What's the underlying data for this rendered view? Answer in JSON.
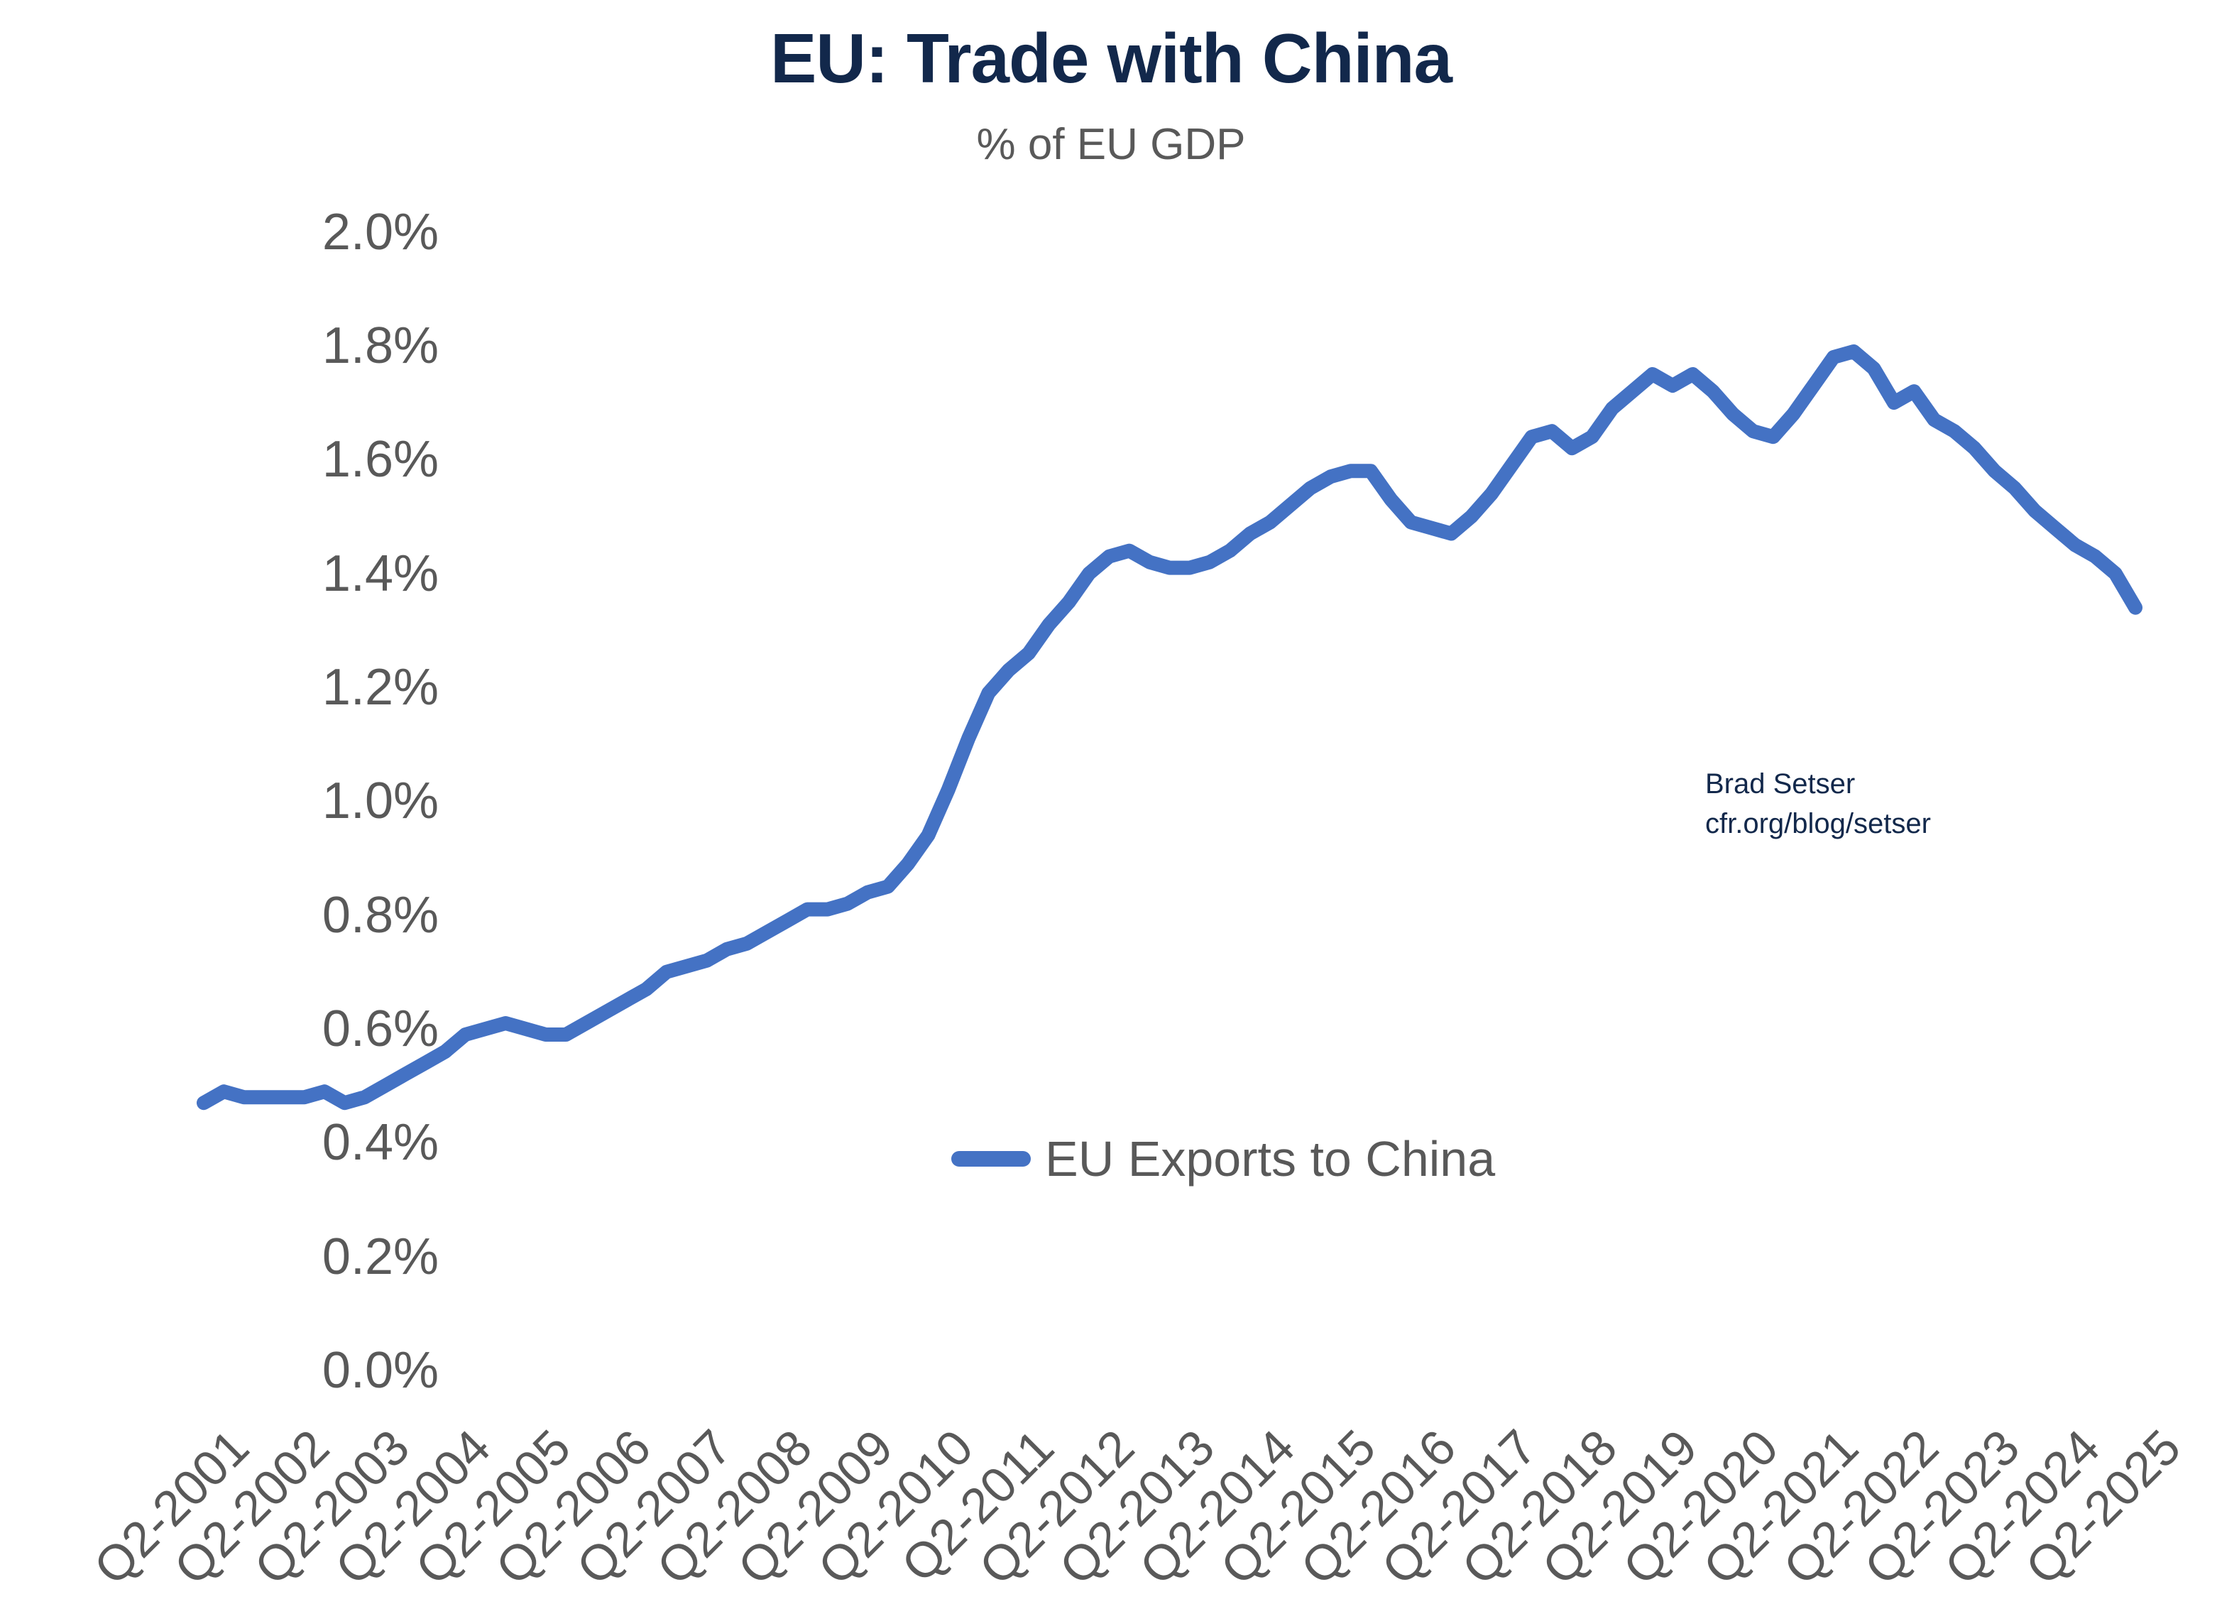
{
  "title": "EU: Trade with China",
  "subtitle": "% of EU GDP",
  "annotation": {
    "line1": "Brad Setser",
    "line2": "cfr.org/blog/setser"
  },
  "legend": {
    "label": "EU Exports to China"
  },
  "colors": {
    "line": "#4472C4",
    "title": "#12284B",
    "axis_text": "#595959",
    "background": "#ffffff"
  },
  "chart_data": {
    "type": "line",
    "title": "EU: Trade with China",
    "subtitle": "% of EU GDP",
    "series_name": "EU Exports to China",
    "frequency": "quarterly",
    "start_period": "Q2-2001",
    "end_period": "Q2-2025",
    "unit": "% of EU GDP",
    "ylim": [
      0.0,
      2.0
    ],
    "y_tick_step": 0.2,
    "grid": "off",
    "legend_position": "center-inside-bottom",
    "y_ticks": [
      {
        "value": 2.0,
        "label": "2.0%"
      },
      {
        "value": 1.8,
        "label": "1.8%"
      },
      {
        "value": 1.6,
        "label": "1.6%"
      },
      {
        "value": 1.4,
        "label": "1.4%"
      },
      {
        "value": 1.2,
        "label": "1.2%"
      },
      {
        "value": 1.0,
        "label": "1.0%"
      },
      {
        "value": 0.8,
        "label": "0.8%"
      },
      {
        "value": 0.6,
        "label": "0.6%"
      },
      {
        "value": 0.4,
        "label": "0.4%"
      },
      {
        "value": 0.2,
        "label": "0.2%"
      },
      {
        "value": 0.0,
        "label": "0.0%"
      }
    ],
    "x_tick_every": 4,
    "x_tick_labels": [
      "Q2-2001",
      "Q2-2002",
      "Q2-2003",
      "Q2-2004",
      "Q2-2005",
      "Q2-2006",
      "Q2-2007",
      "Q2-2008",
      "Q2-2009",
      "Q2-2010",
      "Q2-2011",
      "Q2-2012",
      "Q2-2013",
      "Q2-2014",
      "Q2-2015",
      "Q2-2016",
      "Q2-2017",
      "Q2-2018",
      "Q2-2019",
      "Q2-2020",
      "Q2-2021",
      "Q2-2022",
      "Q2-2023",
      "Q2-2024",
      "Q2-2025"
    ],
    "values": [
      0.47,
      0.49,
      0.48,
      0.48,
      0.48,
      0.48,
      0.49,
      0.47,
      0.48,
      0.5,
      0.52,
      0.54,
      0.56,
      0.59,
      0.6,
      0.61,
      0.6,
      0.59,
      0.59,
      0.61,
      0.63,
      0.65,
      0.67,
      0.7,
      0.71,
      0.72,
      0.74,
      0.75,
      0.77,
      0.79,
      0.81,
      0.81,
      0.82,
      0.84,
      0.85,
      0.89,
      0.94,
      1.02,
      1.11,
      1.19,
      1.23,
      1.26,
      1.31,
      1.35,
      1.4,
      1.43,
      1.44,
      1.42,
      1.41,
      1.41,
      1.42,
      1.44,
      1.47,
      1.49,
      1.52,
      1.55,
      1.57,
      1.58,
      1.58,
      1.53,
      1.49,
      1.48,
      1.47,
      1.5,
      1.54,
      1.59,
      1.64,
      1.65,
      1.62,
      1.64,
      1.69,
      1.72,
      1.75,
      1.73,
      1.75,
      1.72,
      1.68,
      1.65,
      1.64,
      1.68,
      1.73,
      1.78,
      1.79,
      1.76,
      1.7,
      1.72,
      1.67,
      1.65,
      1.62,
      1.58,
      1.55,
      1.51,
      1.48,
      1.45,
      1.43,
      1.4,
      1.34
    ]
  }
}
